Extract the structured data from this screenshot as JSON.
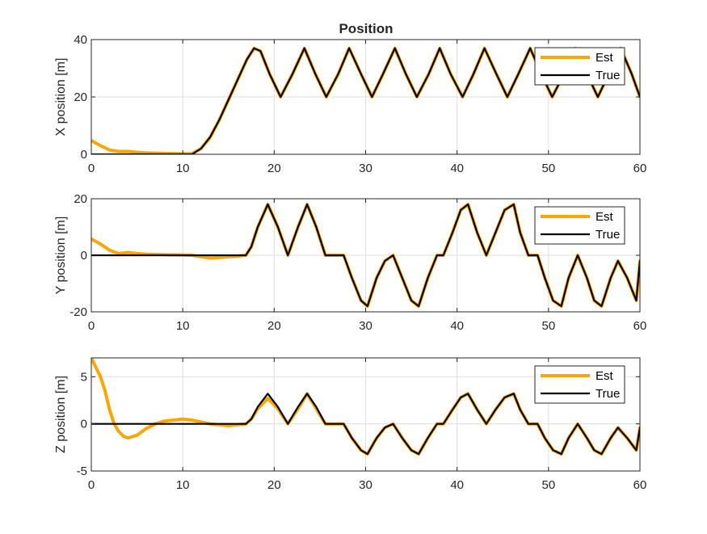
{
  "figure": {
    "title": "Position"
  },
  "chart_data": [
    {
      "type": "line",
      "title": "Position",
      "xlabel": "",
      "ylabel": "X position [m]",
      "xlim": [
        0,
        60
      ],
      "ylim": [
        0,
        40
      ],
      "xticks": [
        0,
        10,
        20,
        30,
        40,
        50,
        60
      ],
      "yticks": [
        0,
        20,
        40
      ],
      "grid": true,
      "legend_position": "top-right",
      "series": [
        {
          "name": "Est",
          "color": "#FFA500",
          "x": [
            0,
            1,
            2,
            3,
            4,
            5,
            6,
            8,
            10,
            11,
            12,
            13,
            14,
            15,
            16,
            17,
            17.8,
            18.5,
            19.5,
            20.7,
            22,
            23.3,
            24.5,
            25.7,
            27,
            28.2,
            29.5,
            30.7,
            31.9,
            33.2,
            34.4,
            35.6,
            36.9,
            38.1,
            39.3,
            40.6,
            41.8,
            43,
            44.3,
            45.5,
            46.7,
            48,
            49.2,
            50.4,
            51.7,
            52.9,
            54.2,
            55.4,
            56.6,
            57.9,
            59.1,
            60
          ],
          "y": [
            4.8,
            3,
            1.5,
            1,
            1,
            0.7,
            0.5,
            0.3,
            0.2,
            0.2,
            2,
            6,
            12,
            19,
            26,
            33,
            37,
            36,
            28,
            20,
            28,
            37,
            28,
            20,
            28,
            37,
            28,
            20,
            28,
            37,
            28,
            20,
            28,
            37,
            28,
            20,
            28,
            37,
            28,
            20,
            28,
            37,
            28,
            20,
            28,
            37,
            28,
            20,
            28,
            37,
            28,
            20
          ]
        },
        {
          "name": "True",
          "color": "#000000",
          "x": [
            0,
            11,
            12,
            13,
            14,
            15,
            16,
            17,
            17.8,
            18.5,
            19.5,
            20.7,
            22,
            23.3,
            24.5,
            25.7,
            27,
            28.2,
            29.5,
            30.7,
            31.9,
            33.2,
            34.4,
            35.6,
            36.9,
            38.1,
            39.3,
            40.6,
            41.8,
            43,
            44.3,
            45.5,
            46.7,
            48,
            49.2,
            50.4,
            51.7,
            52.9,
            54.2,
            55.4,
            56.6,
            57.9,
            59.1,
            60
          ],
          "y": [
            0,
            0,
            2,
            6,
            12,
            19,
            26,
            33,
            37,
            36,
            28,
            20,
            28,
            37,
            28,
            20,
            28,
            37,
            28,
            20,
            28,
            37,
            28,
            20,
            28,
            37,
            28,
            20,
            28,
            37,
            28,
            20,
            28,
            37,
            28,
            20,
            28,
            37,
            28,
            20,
            28,
            37,
            28,
            20
          ]
        }
      ]
    },
    {
      "type": "line",
      "title": "",
      "xlabel": "",
      "ylabel": "Y position [m]",
      "xlim": [
        0,
        60
      ],
      "ylim": [
        -20,
        20
      ],
      "xticks": [
        0,
        10,
        20,
        30,
        40,
        50,
        60
      ],
      "yticks": [
        -20,
        0,
        20
      ],
      "grid": true,
      "legend_position": "top-right",
      "series": [
        {
          "name": "Est",
          "color": "#FFA500",
          "x": [
            0,
            1,
            2,
            3,
            4,
            5,
            6,
            8,
            10,
            11,
            12,
            13,
            14,
            15,
            16,
            16.9,
            17.5,
            18.2,
            19.3,
            20.4,
            21.5,
            22.6,
            23.6,
            24.6,
            25.6,
            26.6,
            27.6,
            28.5,
            29.5,
            30.2,
            31.2,
            32.1,
            33,
            34,
            35,
            35.8,
            36.8,
            37.8,
            38.5,
            39.5,
            40.4,
            41.2,
            42.2,
            43.2,
            44.2,
            45.2,
            46.2,
            46.9,
            47.8,
            48.8,
            49.6,
            50.5,
            51.4,
            52.2,
            53.2,
            54.2,
            55,
            55.8,
            56.8,
            57.6,
            58.6,
            59.6,
            60
          ],
          "y": [
            5.8,
            4,
            1.8,
            0.6,
            1,
            0.6,
            0.4,
            0.2,
            0.1,
            0,
            -0.5,
            -1,
            -0.8,
            -0.5,
            -0.3,
            0,
            3,
            10,
            18,
            10,
            0,
            10,
            18,
            10,
            0,
            0,
            0,
            -8,
            -16,
            -18,
            -8,
            -2,
            0,
            -8,
            -16,
            -18,
            -8,
            0,
            0,
            8,
            16,
            18,
            8,
            0,
            8,
            16,
            18,
            8,
            0,
            0,
            -8,
            -16,
            -18,
            -8,
            0,
            -8,
            -16,
            -18,
            -8,
            -2,
            -8,
            -16,
            -2
          ]
        },
        {
          "name": "True",
          "color": "#000000",
          "x": [
            0,
            16.9,
            17.5,
            18.2,
            19.3,
            20.4,
            21.5,
            22.6,
            23.6,
            24.6,
            25.6,
            26.6,
            27.6,
            28.5,
            29.5,
            30.2,
            31.2,
            32.1,
            33,
            34,
            35,
            35.8,
            36.8,
            37.8,
            38.5,
            39.5,
            40.4,
            41.2,
            42.2,
            43.2,
            44.2,
            45.2,
            46.2,
            46.9,
            47.8,
            48.8,
            49.6,
            50.5,
            51.4,
            52.2,
            53.2,
            54.2,
            55,
            55.8,
            56.8,
            57.6,
            58.6,
            59.6,
            60
          ],
          "y": [
            0,
            0,
            3,
            10,
            18,
            10,
            0,
            10,
            18,
            10,
            0,
            0,
            0,
            -8,
            -16,
            -18,
            -8,
            -2,
            0,
            -8,
            -16,
            -18,
            -8,
            0,
            0,
            8,
            16,
            18,
            8,
            0,
            8,
            16,
            18,
            8,
            0,
            0,
            -8,
            -16,
            -18,
            -8,
            0,
            -8,
            -16,
            -18,
            -8,
            -2,
            -8,
            -16,
            -2
          ]
        }
      ]
    },
    {
      "type": "line",
      "title": "",
      "xlabel": "",
      "ylabel": "Z position [m]",
      "xlim": [
        0,
        60
      ],
      "ylim": [
        -5,
        7
      ],
      "xticks": [
        0,
        10,
        20,
        30,
        40,
        50,
        60
      ],
      "yticks": [
        -5,
        0,
        5
      ],
      "grid": true,
      "legend_position": "top-right",
      "series": [
        {
          "name": "Est",
          "color": "#FFA500",
          "x": [
            0,
            0.5,
            1,
            1.5,
            2,
            2.5,
            3,
            3.5,
            4,
            5,
            6,
            7,
            8,
            9,
            10,
            11,
            12,
            13,
            14,
            15,
            16,
            16.9,
            17.5,
            18.2,
            19.3,
            20.4,
            21.5,
            22.6,
            23.6,
            24.6,
            25.6,
            26.6,
            27.6,
            28.5,
            29.5,
            30.2,
            31.2,
            32.1,
            33,
            34,
            35,
            35.8,
            36.8,
            37.8,
            38.5,
            39.5,
            40.4,
            41.2,
            42.2,
            43.2,
            44.2,
            45.2,
            46.2,
            46.9,
            47.8,
            48.8,
            49.6,
            50.5,
            51.4,
            52.2,
            53.2,
            54.2,
            55,
            55.8,
            56.8,
            57.6,
            58.6,
            59.6,
            60
          ],
          "y": [
            7,
            6,
            5,
            3.5,
            1.5,
            0,
            -0.8,
            -1.3,
            -1.5,
            -1.2,
            -0.5,
            0,
            0.3,
            0.4,
            0.5,
            0.4,
            0.2,
            0,
            -0.1,
            -0.2,
            -0.1,
            0,
            0.5,
            1.6,
            2.7,
            1.6,
            0,
            1.6,
            3.2,
            1.6,
            0,
            0,
            0,
            -1.5,
            -2.8,
            -3.2,
            -1.5,
            -0.4,
            0,
            -1.5,
            -2.8,
            -3.2,
            -1.5,
            0,
            0,
            1.5,
            2.8,
            3.2,
            1.5,
            0,
            1.5,
            2.8,
            3.2,
            1.5,
            0,
            0,
            -1.5,
            -2.8,
            -3.2,
            -1.5,
            0,
            -1.5,
            -2.8,
            -3.2,
            -1.5,
            -0.4,
            -1.5,
            -2.8,
            -0.4
          ]
        },
        {
          "name": "True",
          "color": "#000000",
          "x": [
            0,
            16.9,
            17.5,
            18.2,
            19.3,
            20.4,
            21.5,
            22.6,
            23.6,
            24.6,
            25.6,
            26.6,
            27.6,
            28.5,
            29.5,
            30.2,
            31.2,
            32.1,
            33,
            34,
            35,
            35.8,
            36.8,
            37.8,
            38.5,
            39.5,
            40.4,
            41.2,
            42.2,
            43.2,
            44.2,
            45.2,
            46.2,
            46.9,
            47.8,
            48.8,
            49.6,
            50.5,
            51.4,
            52.2,
            53.2,
            54.2,
            55,
            55.8,
            56.8,
            57.6,
            58.6,
            59.6,
            60
          ],
          "y": [
            0,
            0,
            0.5,
            1.8,
            3.2,
            1.8,
            0,
            1.8,
            3.2,
            1.8,
            0,
            0,
            0,
            -1.5,
            -2.8,
            -3.2,
            -1.5,
            -0.4,
            0,
            -1.5,
            -2.8,
            -3.2,
            -1.5,
            0,
            0,
            1.5,
            2.8,
            3.2,
            1.5,
            0,
            1.5,
            2.8,
            3.2,
            1.5,
            0,
            0,
            -1.5,
            -2.8,
            -3.2,
            -1.5,
            0,
            -1.5,
            -2.8,
            -3.2,
            -1.5,
            -0.4,
            -1.5,
            -2.8,
            -0.4
          ]
        }
      ]
    }
  ]
}
